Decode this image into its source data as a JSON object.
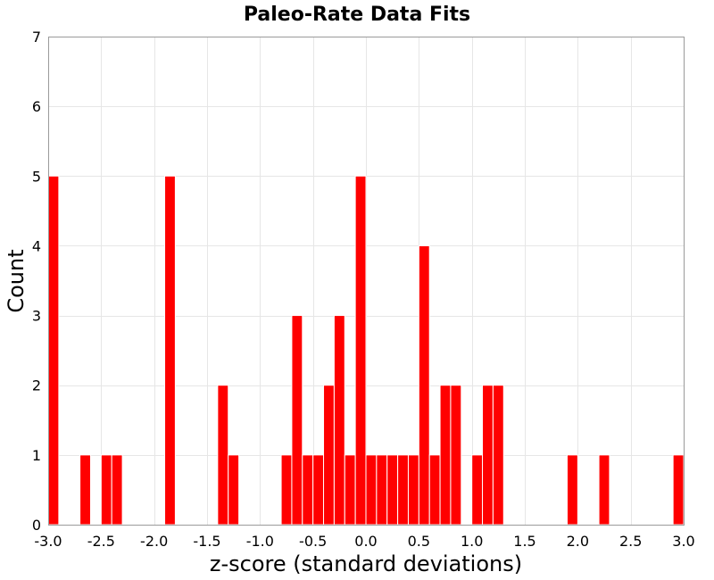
{
  "chart_data": {
    "type": "bar",
    "title": "Paleo-Rate Data Fits",
    "xlabel": "z-score (standard deviations)",
    "ylabel": "Count",
    "xlim": [
      -3.0,
      3.0
    ],
    "ylim": [
      0,
      7
    ],
    "bin_width": 0.1,
    "x_ticks": [
      -3.0,
      -2.5,
      -2.0,
      -1.5,
      -1.0,
      -0.5,
      0.0,
      0.5,
      1.0,
      1.5,
      2.0,
      2.5,
      3.0
    ],
    "x_tick_labels": [
      "-3.0",
      "-2.5",
      "-2.0",
      "-1.5",
      "-1.0",
      "-0.5",
      "0.0",
      "0.5",
      "1.0",
      "1.5",
      "2.0",
      "2.5",
      "3.0"
    ],
    "y_ticks": [
      0,
      1,
      2,
      3,
      4,
      5,
      6,
      7
    ],
    "y_tick_labels": [
      "0",
      "1",
      "2",
      "3",
      "4",
      "5",
      "6",
      "7"
    ],
    "grid": true,
    "bar_color": "#ff0000",
    "bins": [
      {
        "x": -2.95,
        "count": 5
      },
      {
        "x": -2.65,
        "count": 1
      },
      {
        "x": -2.45,
        "count": 1
      },
      {
        "x": -2.35,
        "count": 1
      },
      {
        "x": -1.85,
        "count": 5
      },
      {
        "x": -1.35,
        "count": 2
      },
      {
        "x": -1.25,
        "count": 1
      },
      {
        "x": -0.75,
        "count": 1
      },
      {
        "x": -0.65,
        "count": 3
      },
      {
        "x": -0.55,
        "count": 1
      },
      {
        "x": -0.45,
        "count": 1
      },
      {
        "x": -0.35,
        "count": 2
      },
      {
        "x": -0.25,
        "count": 3
      },
      {
        "x": -0.15,
        "count": 1
      },
      {
        "x": -0.05,
        "count": 5
      },
      {
        "x": 0.05,
        "count": 1
      },
      {
        "x": 0.15,
        "count": 1
      },
      {
        "x": 0.25,
        "count": 1
      },
      {
        "x": 0.35,
        "count": 1
      },
      {
        "x": 0.45,
        "count": 1
      },
      {
        "x": 0.55,
        "count": 4
      },
      {
        "x": 0.65,
        "count": 1
      },
      {
        "x": 0.75,
        "count": 2
      },
      {
        "x": 0.85,
        "count": 2
      },
      {
        "x": 1.05,
        "count": 1
      },
      {
        "x": 1.15,
        "count": 2
      },
      {
        "x": 1.25,
        "count": 2
      },
      {
        "x": 1.95,
        "count": 1
      },
      {
        "x": 2.25,
        "count": 1
      },
      {
        "x": 2.95,
        "count": 1
      }
    ]
  }
}
